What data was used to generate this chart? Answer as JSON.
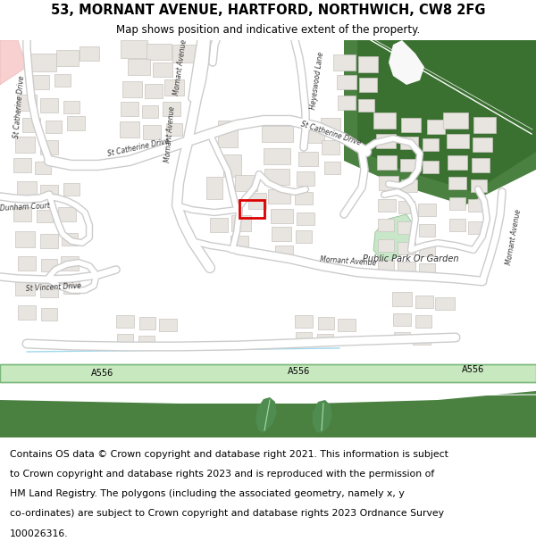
{
  "title_line1": "53, MORNANT AVENUE, HARTFORD, NORTHWICH, CW8 2FG",
  "title_line2": "Map shows position and indicative extent of the property.",
  "footer_lines": [
    "Contains OS data © Crown copyright and database right 2021. This information is subject",
    "to Crown copyright and database rights 2023 and is reproduced with the permission of",
    "HM Land Registry. The polygons (including the associated geometry, namely x, y",
    "co-ordinates) are subject to Crown copyright and database rights 2023 Ordnance Survey",
    "100026316."
  ],
  "title_fontsize": 10.5,
  "subtitle_fontsize": 8.5,
  "footer_fontsize": 7.8,
  "bg_color": "#ffffff",
  "map_bg": "#f8f8f8",
  "building_fill": "#e8e5e0",
  "building_stroke": "#c8c5c0",
  "road_fill": "#ffffff",
  "road_stroke": "#d0d0d0",
  "green_dark": "#4f8c4f",
  "green_medium": "#6aaa6a",
  "green_light": "#c8e6c8",
  "a556_fill": "#c8e8c0",
  "a556_border": "#7ab87a",
  "motorway_outer": "#4a8040",
  "motorway_inner": "#3a7030",
  "red_box": "#dd0000",
  "pink_fill": "#f8d0d0",
  "label_color": "#333333",
  "road_label_size": 5.5,
  "light_blue": "#d0eeff"
}
